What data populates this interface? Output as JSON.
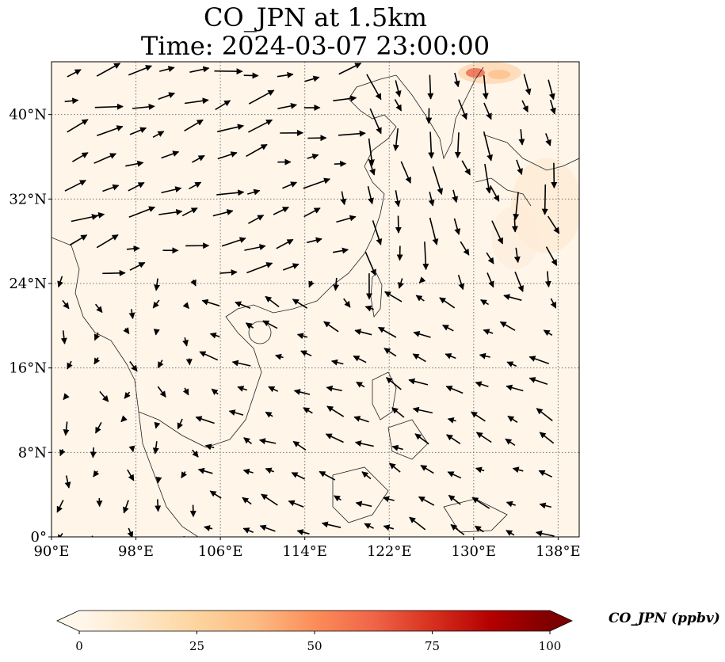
{
  "title": {
    "line1": "CO_JPN at 1.5km",
    "line2": "Time: 2024-03-07 23:00:00"
  },
  "map": {
    "projection": "PlateCarree",
    "lon_range": [
      90,
      140
    ],
    "lat_range": [
      0,
      45
    ],
    "gridlines": "dotted",
    "x_ticks": [
      {
        "value": 90,
        "label": "90°E"
      },
      {
        "value": 98,
        "label": "98°E"
      },
      {
        "value": 106,
        "label": "106°E"
      },
      {
        "value": 114,
        "label": "114°E"
      },
      {
        "value": 122,
        "label": "122°E"
      },
      {
        "value": 130,
        "label": "130°E"
      },
      {
        "value": 138,
        "label": "138°E"
      }
    ],
    "y_ticks": [
      {
        "value": 0,
        "label": "0°"
      },
      {
        "value": 8,
        "label": "8°N"
      },
      {
        "value": 16,
        "label": "16°N"
      },
      {
        "value": 24,
        "label": "24°N"
      },
      {
        "value": 32,
        "label": "32°N"
      },
      {
        "value": 40,
        "label": "40°N"
      }
    ],
    "colors": {
      "background": "#fff5e9",
      "coast": "#222222",
      "grid": "#777777",
      "arrow": "#000000"
    }
  },
  "colorbar": {
    "title": "CO_JPN (ppbv)",
    "min": 0,
    "max": 100,
    "extend": "both",
    "colormap": "OrRd",
    "ticks": [
      {
        "value": 0,
        "label": "0"
      },
      {
        "value": 25,
        "label": "25"
      },
      {
        "value": 50,
        "label": "50"
      },
      {
        "value": 75,
        "label": "75"
      },
      {
        "value": 100,
        "label": "100"
      }
    ],
    "stops": [
      "#fff7ec",
      "#fee8c8",
      "#fdd49e",
      "#fdbb84",
      "#fc8d59",
      "#ef6548",
      "#d7301f",
      "#b30000",
      "#7f0000"
    ]
  }
}
